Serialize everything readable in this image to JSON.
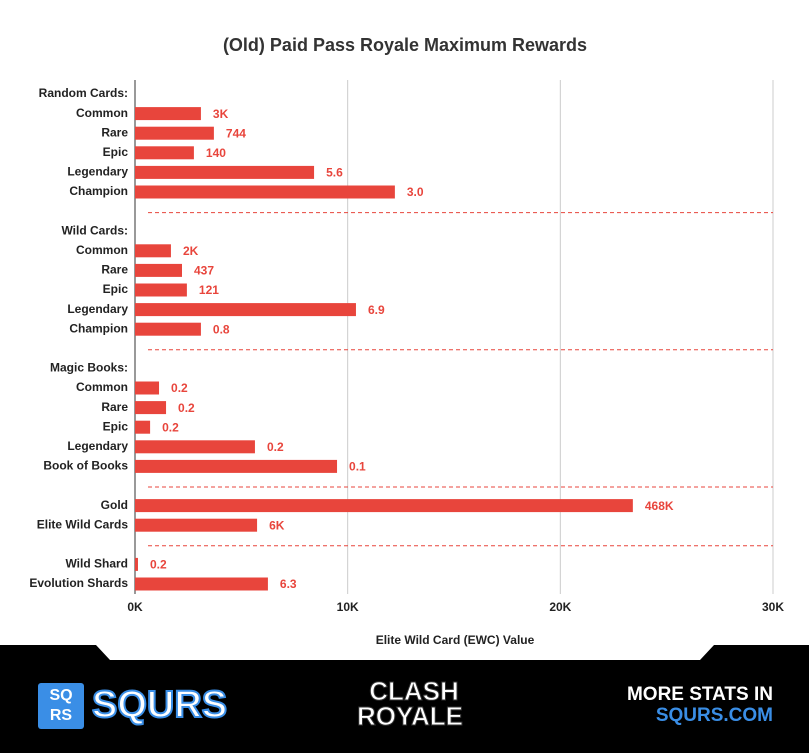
{
  "chart_data": {
    "type": "bar",
    "orientation": "horizontal",
    "title": "(Old) Paid Pass Royale Maximum Rewards",
    "x_label": "Elite Wild Card (EWC) Value",
    "categories": [
      "Random Cards:",
      "Common",
      "Rare",
      "Epic",
      "Legendary",
      "Champion",
      "Wild Cards:",
      "Common",
      "Rare",
      "Epic",
      "Legendary",
      "Champion",
      "Magic Books:",
      "Common",
      "Rare",
      "Epic",
      "Legendary",
      "Book of Books",
      "Gold",
      "Elite Wild Cards",
      "Wild Shard",
      "Evolution Shards"
    ],
    "values": [
      null,
      3100,
      3710,
      2770,
      8420,
      12220,
      null,
      1690,
      2210,
      2440,
      10390,
      3100,
      null,
      1130,
      1460,
      710,
      5640,
      9500,
      23410,
      5740,
      140,
      6250
    ],
    "value_labels": [
      null,
      "3K",
      "744",
      "140",
      "5.6",
      "3.0",
      null,
      "2K",
      "437",
      "121",
      "6.9",
      "0.8",
      null,
      "0.2",
      "0.2",
      "0.2",
      "0.2",
      "0.1",
      "468K",
      "6K",
      "0.2",
      "6.3"
    ],
    "color": "#e8453c",
    "xlim": [
      0,
      30000
    ],
    "xticks": [
      {
        "value": 0,
        "label": "0K"
      },
      {
        "value": 10000,
        "label": "10K"
      },
      {
        "value": 20000,
        "label": "20K"
      },
      {
        "value": 30000,
        "label": "30K"
      }
    ],
    "grid": true
  },
  "footer": {
    "logo_icon": [
      "SQ",
      "RS"
    ],
    "brand": "SQURS",
    "game_logo": [
      "CLASH",
      "ROYALE"
    ],
    "promo": [
      "MORE STATS IN",
      "SQURS.COM"
    ]
  }
}
